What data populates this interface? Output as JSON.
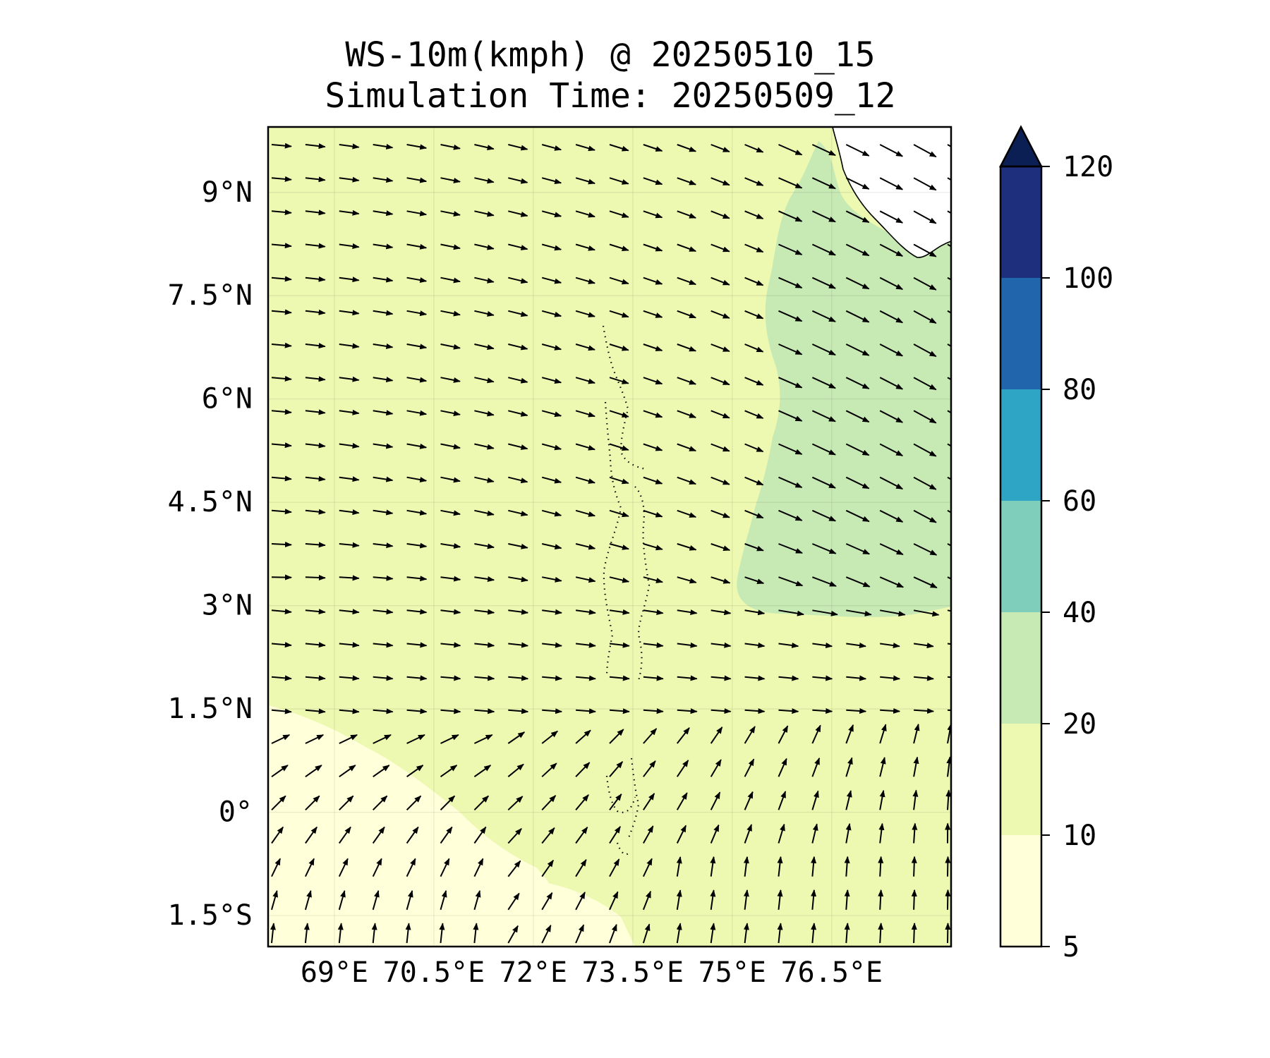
{
  "title": "WS-10m(kmph) @ 20250510_15",
  "subtitle": "Simulation Time: 20250509_12",
  "map": {
    "lon_range": [
      68.0,
      78.3
    ],
    "lat_range": [
      -1.95,
      9.95
    ],
    "lon_ticks": [
      69,
      70.5,
      72,
      73.5,
      75,
      76.5
    ],
    "lat_ticks": [
      -1.5,
      0,
      1.5,
      3,
      4.5,
      6,
      7.5,
      9
    ],
    "lon_tick_labels": [
      "69°E",
      "70.5°E",
      "72°E",
      "73.5°E",
      "75°E",
      "76.5°E"
    ],
    "lat_tick_labels": [
      "1.5°S",
      "0°",
      "1.5°N",
      "3°N",
      "4.5°N",
      "6°N",
      "7.5°N",
      "9°N"
    ],
    "gridlines": true,
    "variable": "10 m wind speed (kmph) with wind-direction vectors",
    "background_field_colors": {
      "5-10": "#FFFFD9",
      "10-20": "#EDF8B1",
      "20-40": "#C7E9B4"
    },
    "notes_visible": [
      "stronger 20-40 kmph winds east of ~75°E, 2.5°N-9.5°N",
      "vectors turn from westerly/north-westerly in the north to southerly near 1.5°S in the east"
    ]
  },
  "colorbar": {
    "levels": [
      5,
      10,
      20,
      40,
      60,
      80,
      100,
      120
    ],
    "labels": [
      "5",
      "10",
      "20",
      "40",
      "60",
      "80",
      "100",
      "120"
    ],
    "colors": [
      "#FFFFD9",
      "#EDF8B1",
      "#C7E9B4",
      "#7FCDBB",
      "#2FA5C5",
      "#2166AC",
      "#1D2F7D"
    ],
    "extend_color": "#0B1F54",
    "extend": "max"
  }
}
